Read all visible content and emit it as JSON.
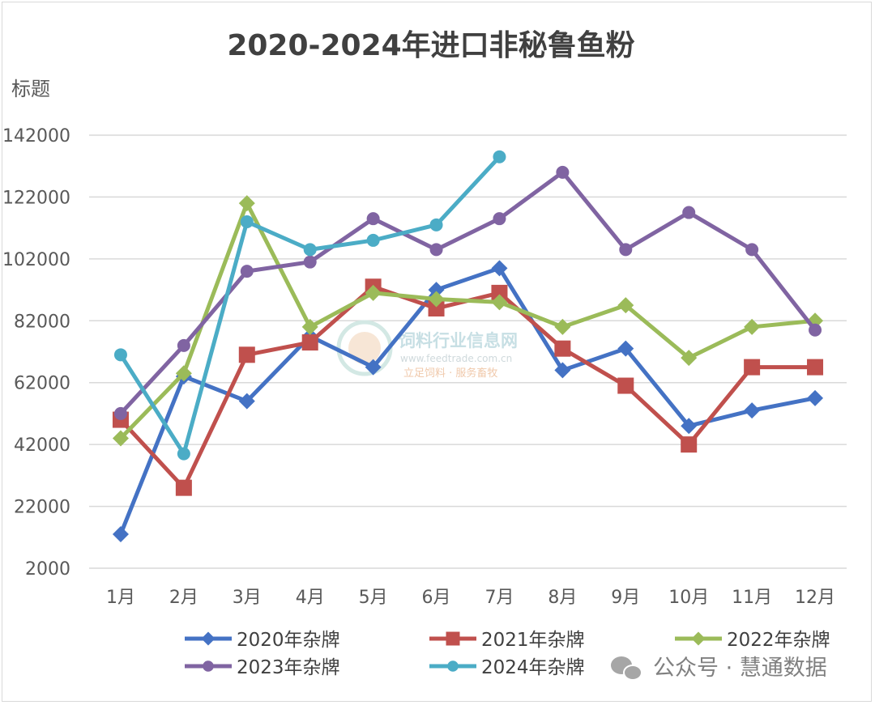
{
  "chart_data": {
    "type": "line",
    "title": "2020-2024年进口非秘鲁鱼粉",
    "ylabel": "标题",
    "xlabel": "",
    "ylim": [
      2000,
      142000
    ],
    "yticks": [
      2000,
      22000,
      42000,
      62000,
      82000,
      102000,
      122000,
      142000
    ],
    "ytick_labels": [
      "2000",
      "22000",
      "42000",
      "62000",
      "82000",
      "102000",
      "122000",
      "142000"
    ],
    "categories": [
      "1月",
      "2月",
      "3月",
      "4月",
      "5月",
      "6月",
      "7月",
      "8月",
      "9月",
      "10月",
      "11月",
      "12月"
    ],
    "grid": true,
    "legend_position": "bottom",
    "series": [
      {
        "name": "2020年杂牌",
        "color": "#4472c4",
        "marker": "diamond",
        "values": [
          13000,
          64000,
          56000,
          77000,
          67000,
          92000,
          99000,
          66000,
          73000,
          48000,
          53000,
          57000
        ]
      },
      {
        "name": "2021年杂牌",
        "color": "#c0504d",
        "marker": "square",
        "values": [
          50000,
          28000,
          71000,
          75000,
          93000,
          86000,
          91000,
          73000,
          61000,
          42000,
          67000,
          67000
        ]
      },
      {
        "name": "2022年杂牌",
        "color": "#9bbb59",
        "marker": "diamond",
        "values": [
          44000,
          65000,
          120000,
          80000,
          91000,
          89000,
          88000,
          80000,
          87000,
          70000,
          80000,
          82000
        ]
      },
      {
        "name": "2023年杂牌",
        "color": "#8064a2",
        "marker": "circle",
        "values": [
          52000,
          74000,
          98000,
          101000,
          115000,
          105000,
          115000,
          130000,
          105000,
          117000,
          105000,
          79000
        ]
      },
      {
        "name": "2024年杂牌",
        "color": "#4bacc6",
        "marker": "circle",
        "values": [
          71000,
          39000,
          114000,
          105000,
          108000,
          113000,
          135000,
          null,
          null,
          null,
          null,
          null
        ]
      }
    ]
  },
  "watermark": {
    "name": "饲料行业信息网",
    "url": "www.feedtrade.com.cn",
    "slogan": "立足饲料 · 服务畜牧"
  },
  "source": {
    "label": "公众号 · 慧通数据"
  }
}
